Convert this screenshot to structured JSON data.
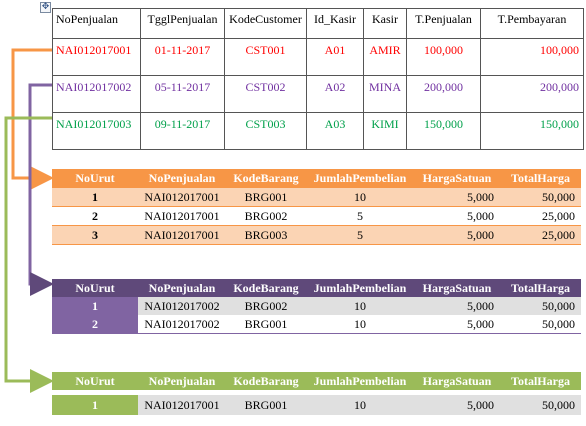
{
  "master": {
    "headers": [
      "NoPenjualan",
      "TgglPenjualan",
      "KodeCustomer",
      "Id_Kasir",
      "Kasir",
      "T.Penjualan",
      "T.Pembayaran"
    ],
    "rows": [
      {
        "no": "NAI012017001",
        "tgl": "01-11-2017",
        "cust": "CST001",
        "id": "A01",
        "kasir": "AMIR",
        "tpenj": "100,000",
        "tbayar": "100,000"
      },
      {
        "no": "NAI012017002",
        "tgl": "05-11-2017",
        "cust": "CST002",
        "id": "A02",
        "kasir": "MINA",
        "tpenj": "200,000",
        "tbayar": "200,000"
      },
      {
        "no": "NAI012017003",
        "tgl": "09-11-2017",
        "cust": "CST003",
        "id": "A03",
        "kasir": "KIMI",
        "tpenj": "150,000",
        "tbayar": "150,000"
      }
    ]
  },
  "detail_headers": [
    "NoUrut",
    "NoPenjualan",
    "KodeBarang",
    "JumlahPembelian",
    "HargaSatuan",
    "TotalHarga"
  ],
  "orange": [
    {
      "urut": "1",
      "no": "NAI012017001",
      "barang": "BRG001",
      "jumlah": "10",
      "harga": "5,000",
      "total": "50,000"
    },
    {
      "urut": "2",
      "no": "NAI012017001",
      "barang": "BRG002",
      "jumlah": "5",
      "harga": "5,000",
      "total": "25,000"
    },
    {
      "urut": "3",
      "no": "NAI012017001",
      "barang": "BRG003",
      "jumlah": "5",
      "harga": "5,000",
      "total": "25,000"
    }
  ],
  "purple": [
    {
      "urut": "1",
      "no": "NAI012017002",
      "barang": "BRG002",
      "jumlah": "10",
      "harga": "5,000",
      "total": "50,000"
    },
    {
      "urut": "2",
      "no": "NAI012017002",
      "barang": "BRG001",
      "jumlah": "10",
      "harga": "5,000",
      "total": "50,000"
    }
  ],
  "green": [
    {
      "urut": "1",
      "no": "NAI012017001",
      "barang": "BRG001",
      "jumlah": "10",
      "harga": "5,000",
      "total": "50,000"
    }
  ],
  "colors": {
    "orange": "#f79646",
    "purple": "#5f497a",
    "green": "#9bbb59",
    "red_text": "#ff0000",
    "purple_text": "#7030a0",
    "green_text": "#00a04a"
  }
}
